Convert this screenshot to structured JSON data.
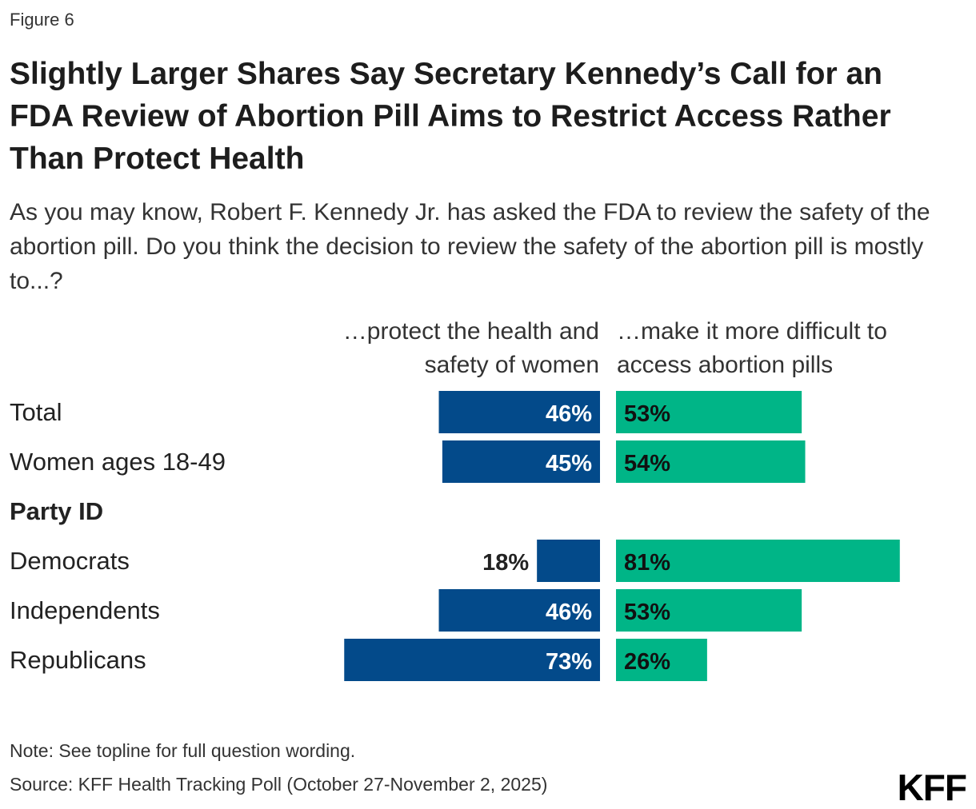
{
  "figure_label": "Figure 6",
  "title": "Slightly Larger Shares Say Secretary Kennedy’s Call for an FDA Review of Abortion Pill Aims to Restrict Access Rather Than Protect Health",
  "subtitle": "As you may know, Robert F. Kennedy Jr. has asked the FDA to review the safety of the abortion pill. Do you think the decision to review the safety of the abortion pill is mostly to...?",
  "note": "Note: See topline for full question wording.",
  "source": "Source: KFF Health Tracking Poll (October 27-November 2, 2025)",
  "logo": "KFF",
  "colors": {
    "protect": "#034a8a",
    "restrict": "#00b587"
  },
  "chart_data": {
    "type": "bar",
    "orientation": "horizontal-diverging",
    "unit": "%",
    "series": [
      {
        "name": "…protect the health and\nsafety of women",
        "values": [
          46,
          45,
          null,
          18,
          46,
          73
        ]
      },
      {
        "name": "…make it more difficult to\naccess abortion pills",
        "values": [
          53,
          54,
          null,
          81,
          53,
          26
        ]
      }
    ],
    "categories": [
      "Total",
      "Women ages 18-49",
      "Party ID",
      "Democrats",
      "Independents",
      "Republicans"
    ],
    "category_groups": [
      "Party ID"
    ],
    "xlim": [
      0,
      100
    ],
    "grid": false,
    "legend": "column-headers"
  }
}
